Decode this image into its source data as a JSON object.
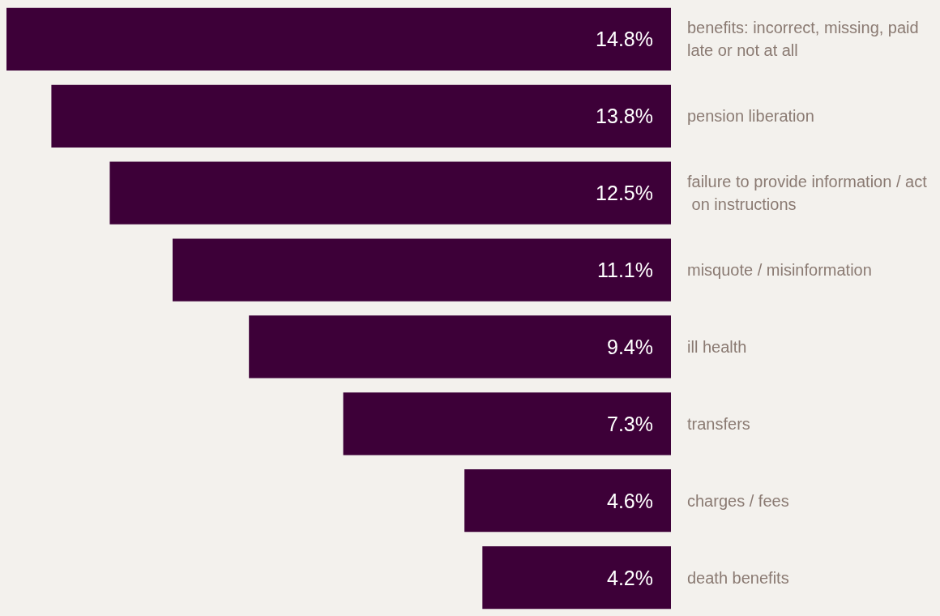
{
  "chart_data": {
    "type": "bar",
    "orientation": "horizontal",
    "categories": [
      "benefits: incorrect, missing, paid late or not at all",
      "pension liberation",
      "failure to provide information / act on instructions",
      "misquote / misinformation",
      "ill health",
      "transfers",
      "charges / fees",
      "death benefits"
    ],
    "values": [
      14.8,
      13.8,
      12.5,
      11.1,
      9.4,
      7.3,
      4.6,
      4.2
    ],
    "value_labels": [
      "14.8%",
      "13.8%",
      "12.5%",
      "11.1%",
      "9.4%",
      "7.3%",
      "4.6%",
      "4.2%"
    ],
    "color": "#3d0038"
  }
}
